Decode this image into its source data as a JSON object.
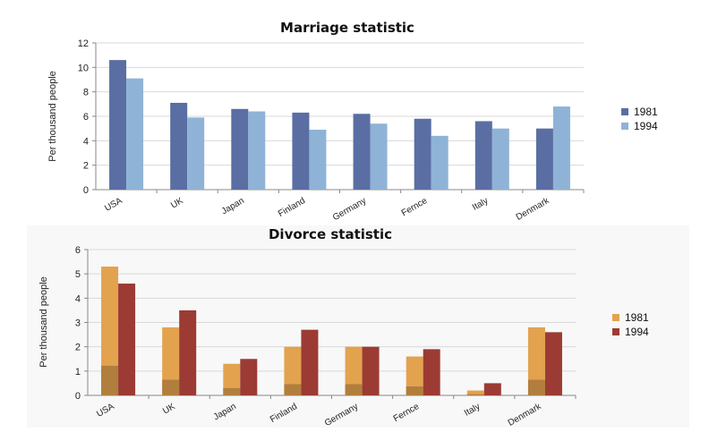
{
  "chart_data": [
    {
      "type": "bar",
      "title": "Marriage statistic",
      "ylabel": "Per thousand people",
      "xlabel": "",
      "ylim": [
        0,
        12
      ],
      "yticks": [
        0,
        2,
        4,
        6,
        8,
        10,
        12
      ],
      "categories": [
        "USA",
        "UK",
        "Japan",
        "Finland",
        "Germany",
        "Fernce",
        "Italy",
        "Denmark"
      ],
      "series": [
        {
          "name": "1981",
          "values": [
            10.6,
            7.1,
            6.6,
            6.3,
            6.2,
            5.8,
            5.6,
            5.0
          ],
          "color": "#5a6ea3"
        },
        {
          "name": "1994",
          "values": [
            9.1,
            5.9,
            6.4,
            4.9,
            5.4,
            4.4,
            5.0,
            6.8
          ],
          "color": "#8fb3d6"
        }
      ],
      "grid": true,
      "legend": "right"
    },
    {
      "type": "bar",
      "title": "Divorce statistic",
      "ylabel": "Per thousand people",
      "xlabel": "",
      "ylim": [
        0,
        6
      ],
      "yticks": [
        0,
        1,
        2,
        3,
        4,
        5,
        6
      ],
      "categories": [
        "USA",
        "UK",
        "Japan",
        "Finland",
        "Germany",
        "Fernce",
        "Italy",
        "Denmark"
      ],
      "series": [
        {
          "name": "1981",
          "values": [
            5.3,
            2.8,
            1.3,
            2.0,
            2.0,
            1.6,
            0.2,
            2.8
          ],
          "color": "#e3a24e"
        },
        {
          "name": "1994",
          "values": [
            4.6,
            3.5,
            1.5,
            2.7,
            2.0,
            1.9,
            0.5,
            2.6
          ],
          "color": "#9b3b34"
        }
      ],
      "grid": true,
      "legend": "right"
    }
  ]
}
